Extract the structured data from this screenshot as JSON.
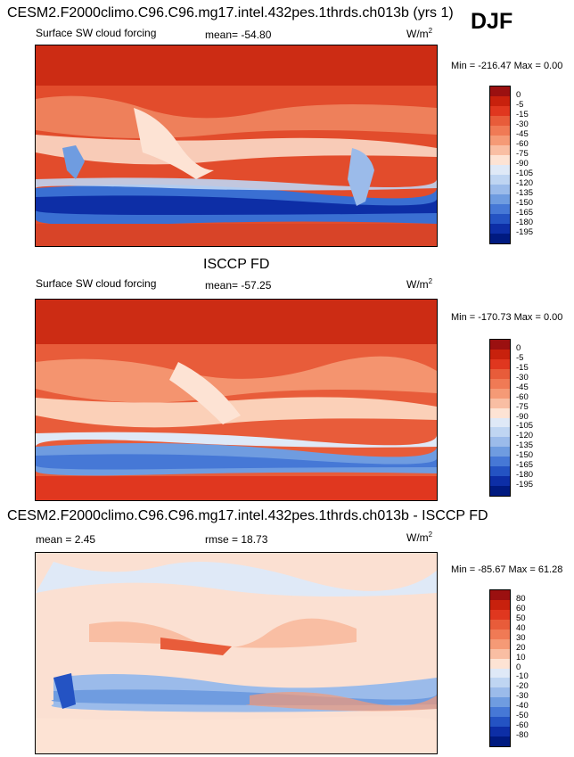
{
  "figure": {
    "season": "DJF",
    "panels": [
      {
        "title": "CESM2.F2000climo.C96.C96.mg17.intel.432pes.1thrds.ch013b (yrs 1)",
        "left_label": "Surface SW cloud forcing",
        "stat_label": "mean= -54.80",
        "units": "W/m",
        "units_sup": "2",
        "minmax": "Min = -216.47 Max =   0.00",
        "colorbar": {
          "labels": [
            "0",
            "-5",
            "-15",
            "-30",
            "-45",
            "-60",
            "-75",
            "-90",
            "-105",
            "-120",
            "-135",
            "-150",
            "-165",
            "-180",
            "-195"
          ],
          "colors": [
            "#9b1010",
            "#c8210d",
            "#e0371f",
            "#e85c3a",
            "#f07a55",
            "#f59a76",
            "#f9bea3",
            "#fde3d4",
            "#dfe9f7",
            "#bfd5f2",
            "#9bbbea",
            "#6f9ce0",
            "#4678d6",
            "#2453c3",
            "#0d2ea6",
            "#001a80"
          ]
        }
      },
      {
        "title": "ISCCP FD",
        "left_label": "Surface SW cloud forcing",
        "stat_label": "mean= -57.25",
        "units": "W/m",
        "units_sup": "2",
        "minmax": "Min = -170.73 Max =   0.00",
        "colorbar": {
          "labels": [
            "0",
            "-5",
            "-15",
            "-30",
            "-45",
            "-60",
            "-75",
            "-90",
            "-105",
            "-120",
            "-135",
            "-150",
            "-165",
            "-180",
            "-195"
          ],
          "colors": [
            "#9b1010",
            "#c8210d",
            "#e0371f",
            "#e85c3a",
            "#f07a55",
            "#f59a76",
            "#f9bea3",
            "#fde3d4",
            "#dfe9f7",
            "#bfd5f2",
            "#9bbbea",
            "#6f9ce0",
            "#4678d6",
            "#2453c3",
            "#0d2ea6",
            "#001a80"
          ]
        }
      },
      {
        "title": "CESM2.F2000climo.C96.C96.mg17.intel.432pes.1thrds.ch013b - ISCCP FD",
        "left_label": "mean =   2.45",
        "stat_label": "rmse =  18.73",
        "units": "W/m",
        "units_sup": "2",
        "minmax": "Min = -85.67 Max =  61.28",
        "colorbar": {
          "labels": [
            "80",
            "60",
            "50",
            "40",
            "30",
            "20",
            "10",
            "0",
            "-10",
            "-20",
            "-30",
            "-40",
            "-50",
            "-60",
            "-80"
          ],
          "colors": [
            "#9b1010",
            "#c8210d",
            "#e0371f",
            "#e85c3a",
            "#f07a55",
            "#f59a76",
            "#f9bea3",
            "#fde3d4",
            "#dfe9f7",
            "#bfd5f2",
            "#9bbbea",
            "#6f9ce0",
            "#4678d6",
            "#2453c3",
            "#0d2ea6",
            "#001a80"
          ]
        }
      }
    ]
  }
}
